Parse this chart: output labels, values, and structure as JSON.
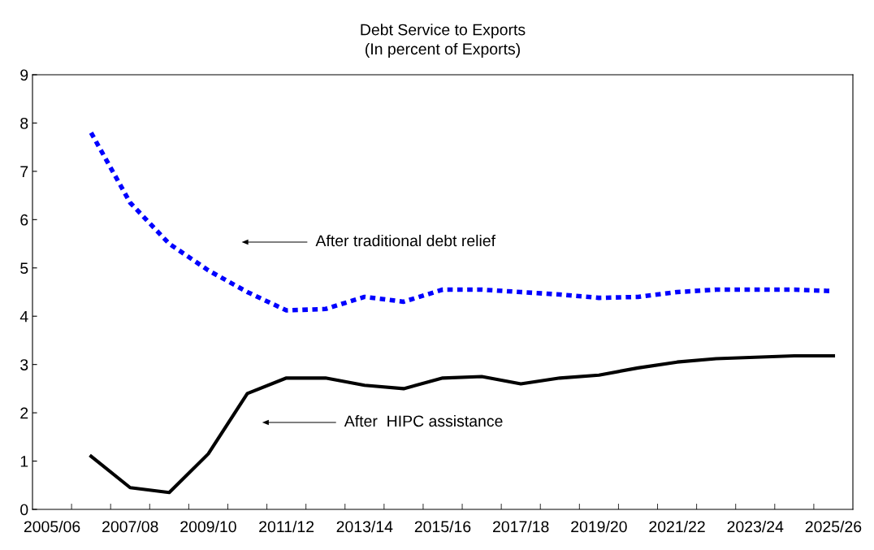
{
  "chart_data": {
    "type": "line",
    "title": "Debt Service to Exports\n(In percent of Exports)",
    "categories": [
      "2005/06",
      null,
      "2007/08",
      null,
      "2009/10",
      null,
      "2011/12",
      null,
      "2013/14",
      null,
      "2015/16",
      null,
      "2017/18",
      null,
      "2019/20",
      null,
      "2021/22",
      null,
      "2023/24",
      null,
      "2025/26"
    ],
    "series": [
      {
        "color": "#0000ff",
        "line_style": "dashed",
        "values": [
          null,
          7.8,
          6.35,
          5.5,
          4.95,
          4.5,
          4.12,
          4.15,
          4.4,
          4.3,
          4.55,
          4.55,
          4.5,
          4.45,
          4.38,
          4.4,
          4.5,
          4.55,
          4.55,
          4.55,
          4.52
        ]
      },
      {
        "color": "#000000",
        "line_style": "solid",
        "values": [
          null,
          1.1,
          0.45,
          0.35,
          1.15,
          2.4,
          2.72,
          2.72,
          2.57,
          2.5,
          2.72,
          2.75,
          2.6,
          2.72,
          2.78,
          2.93,
          3.05,
          3.12,
          3.15,
          3.18,
          3.18
        ]
      }
    ],
    "ylim": [
      0,
      9
    ],
    "yticks": [
      0,
      1,
      2,
      3,
      4,
      5,
      6,
      7,
      8,
      9
    ],
    "annotations": [
      "After traditional debt relief",
      "After  HIPC assistance"
    ],
    "grid": false,
    "legend": false,
    "marker": "none"
  }
}
